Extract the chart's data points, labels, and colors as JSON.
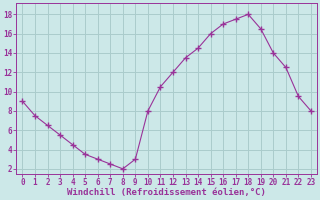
{
  "x": [
    0,
    1,
    2,
    3,
    4,
    5,
    6,
    7,
    8,
    9,
    10,
    11,
    12,
    13,
    14,
    15,
    16,
    17,
    18,
    19,
    20,
    21,
    22,
    23
  ],
  "y": [
    9,
    7.5,
    6.5,
    5.5,
    4.5,
    3.5,
    3,
    2.5,
    2,
    3,
    8,
    10.5,
    12,
    13.5,
    14.5,
    16,
    17,
    17.5,
    18,
    16.5,
    14,
    12.5,
    9.5,
    8
  ],
  "line_color": "#993399",
  "marker": "+",
  "marker_size": 4,
  "marker_lw": 1.0,
  "bg_color": "#cce8e8",
  "grid_color": "#aacccc",
  "xlabel": "Windchill (Refroidissement éolien,°C)",
  "xlabel_color": "#993399",
  "xlabel_fontsize": 6.5,
  "tick_color": "#993399",
  "tick_fontsize": 5.5,
  "ytick_labels": [
    "2",
    "4",
    "6",
    "8",
    "10",
    "12",
    "14",
    "16",
    "18"
  ],
  "ytick_vals": [
    2,
    4,
    6,
    8,
    10,
    12,
    14,
    16,
    18
  ],
  "ylim": [
    1.5,
    19.2
  ],
  "xlim": [
    -0.5,
    23.5
  ]
}
